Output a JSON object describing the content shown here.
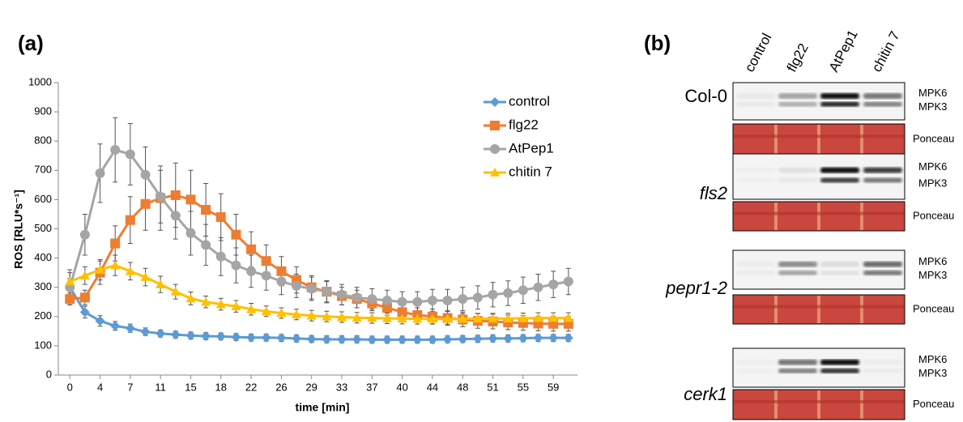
{
  "chart_data": {
    "type": "line",
    "xlabel": "time [min]",
    "ylabel": "ROS [RLU*s⁻¹]",
    "x": [
      0,
      1.83,
      3.67,
      5.5,
      7.33,
      9.17,
      11,
      12.83,
      14.67,
      16.5,
      18.33,
      20.17,
      22,
      23.83,
      25.67,
      27.5,
      29.33,
      31.17,
      33,
      34.83,
      36.67,
      38.5,
      40.33,
      42.17,
      44,
      45.83,
      47.67,
      49.5,
      51.33,
      53.17,
      55,
      56.83,
      58.67,
      60.5
    ],
    "xlim": [
      -1.4,
      61.6
    ],
    "xticks": [
      0,
      {
        "value": 3.67,
        "label": "4"
      },
      {
        "value": 7.33,
        "label": "7"
      },
      11,
      {
        "value": 14.67,
        "label": "15"
      },
      {
        "value": 18.33,
        "label": "18"
      },
      22,
      {
        "value": 25.67,
        "label": "26"
      },
      {
        "value": 29.33,
        "label": "29"
      },
      33,
      {
        "value": 36.67,
        "label": "37"
      },
      {
        "value": 40.33,
        "label": "40"
      },
      44,
      {
        "value": 47.67,
        "label": "48"
      },
      {
        "value": 51.33,
        "label": "51"
      },
      55,
      {
        "value": 58.67,
        "label": "59"
      }
    ],
    "ylim": [
      0,
      1000
    ],
    "yticks": [
      0,
      100,
      200,
      300,
      400,
      500,
      600,
      700,
      800,
      900,
      1000
    ],
    "grid": false,
    "legend": "upper right",
    "series": [
      {
        "name": "control",
        "color": "#5b9bd5",
        "marker": "diamond",
        "values": [
          300,
          215,
          185,
          168,
          160,
          148,
          142,
          138,
          135,
          133,
          132,
          130,
          128,
          128,
          127,
          125,
          123,
          122,
          122,
          122,
          121,
          121,
          121,
          121,
          121,
          122,
          123,
          124,
          125,
          125,
          126,
          127,
          127,
          127
        ],
        "errors": [
          30,
          20,
          18,
          15,
          14,
          13,
          12,
          12,
          12,
          12,
          12,
          12,
          12,
          12,
          12,
          12,
          12,
          12,
          12,
          12,
          12,
          12,
          12,
          12,
          12,
          12,
          12,
          12,
          12,
          12,
          12,
          12,
          12,
          12
        ]
      },
      {
        "name": "flg22",
        "color": "#ed7d31",
        "marker": "square",
        "values": [
          260,
          265,
          350,
          450,
          530,
          585,
          605,
          615,
          600,
          565,
          540,
          480,
          430,
          390,
          355,
          325,
          300,
          285,
          270,
          260,
          245,
          230,
          215,
          205,
          200,
          195,
          190,
          185,
          183,
          180,
          178,
          176,
          175,
          175
        ],
        "errors": [
          20,
          25,
          40,
          60,
          80,
          90,
          110,
          110,
          100,
          90,
          80,
          70,
          60,
          55,
          50,
          45,
          40,
          35,
          30,
          30,
          25,
          25,
          25,
          25,
          25,
          25,
          25,
          25,
          25,
          25,
          25,
          25,
          25,
          25
        ]
      },
      {
        "name": "AtPep1",
        "color": "#a5a5a5",
        "marker": "circle",
        "values": [
          300,
          480,
          690,
          770,
          755,
          685,
          610,
          545,
          485,
          445,
          405,
          375,
          355,
          340,
          320,
          305,
          295,
          285,
          275,
          265,
          260,
          255,
          250,
          250,
          255,
          255,
          260,
          265,
          275,
          280,
          290,
          300,
          310,
          320
        ],
        "errors": [
          60,
          70,
          100,
          110,
          105,
          95,
          90,
          80,
          75,
          70,
          65,
          60,
          55,
          50,
          45,
          40,
          40,
          38,
          35,
          35,
          35,
          35,
          35,
          35,
          38,
          38,
          40,
          40,
          42,
          42,
          45,
          45,
          45,
          45
        ]
      },
      {
        "name": "chitin 7",
        "color": "#ffc000",
        "marker": "triangle",
        "values": [
          320,
          340,
          360,
          375,
          355,
          335,
          310,
          285,
          262,
          250,
          242,
          235,
          225,
          218,
          212,
          207,
          203,
          200,
          198,
          196,
          195,
          194,
          193,
          192,
          192,
          192,
          192,
          193,
          193,
          193,
          194,
          195,
          195,
          195
        ],
        "errors": [
          30,
          30,
          35,
          35,
          30,
          30,
          28,
          25,
          22,
          20,
          20,
          20,
          20,
          18,
          18,
          18,
          18,
          18,
          18,
          18,
          18,
          18,
          18,
          18,
          18,
          18,
          18,
          18,
          18,
          18,
          18,
          18,
          18,
          18
        ]
      }
    ]
  },
  "panel_labels": [
    "(a)",
    "(b)"
  ],
  "blot": {
    "lanes": [
      "control",
      "flg22",
      "AtPep1",
      "chitin 7"
    ],
    "rows": [
      {
        "genotype": "Col-0",
        "bands": [
          "MPK6",
          "MPK3"
        ],
        "loading": "Ponceau"
      },
      {
        "genotype": "fls2",
        "bands": [
          "MPK6",
          "MPK3"
        ],
        "loading": "Ponceau"
      },
      {
        "genotype": "pepr1-2",
        "bands": [
          "MPK6",
          "MPK3"
        ],
        "loading": "Ponceau"
      },
      {
        "genotype": "cerk1",
        "bands": [
          "MPK6",
          "MPK3"
        ],
        "loading": "Ponceau"
      }
    ]
  }
}
